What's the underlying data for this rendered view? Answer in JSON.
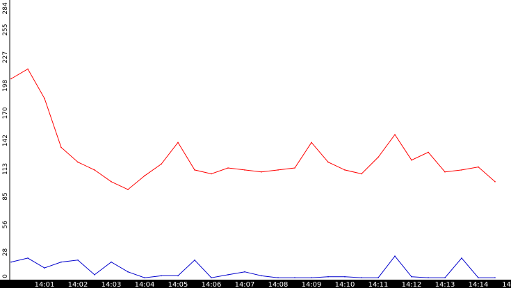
{
  "chart_data": {
    "type": "line",
    "title": "",
    "xlabel": "",
    "ylabel": "",
    "ylim": [
      0,
      284
    ],
    "y_ticks": [
      "0",
      "28",
      "56",
      "85",
      "113",
      "142",
      "170",
      "198",
      "227",
      "255",
      "284"
    ],
    "x_ticks": [
      "14:01",
      "14:02",
      "14:03",
      "14:04",
      "14:05",
      "14:06",
      "14:07",
      "14:08",
      "14:09",
      "14:10",
      "14:11",
      "14:12",
      "14:13",
      "14:14",
      "14"
    ],
    "grid": false,
    "legend": "none",
    "x_axis_band_color": "#000000",
    "x": [
      "14:00:00",
      "14:00:30",
      "14:01:00",
      "14:01:30",
      "14:02:00",
      "14:02:30",
      "14:03:00",
      "14:03:30",
      "14:04:00",
      "14:04:30",
      "14:05:00",
      "14:05:30",
      "14:06:00",
      "14:06:30",
      "14:07:00",
      "14:07:30",
      "14:08:00",
      "14:08:30",
      "14:09:00",
      "14:09:30",
      "14:10:00",
      "14:10:30",
      "14:11:00",
      "14:11:30",
      "14:12:00",
      "14:12:30",
      "14:13:00",
      "14:13:30",
      "14:14:00",
      "14:14:30"
    ],
    "series": [
      {
        "color": "#ff0000",
        "values": [
          205,
          215,
          185,
          135,
          120,
          112,
          100,
          92,
          106,
          118,
          140,
          112,
          108,
          114,
          112,
          110,
          112,
          114,
          140,
          120,
          112,
          108,
          125,
          148,
          122,
          130,
          110,
          112,
          115,
          100
        ]
      },
      {
        "color": "#0000cc",
        "values": [
          18,
          22,
          12,
          18,
          20,
          5,
          18,
          8,
          2,
          4,
          4,
          20,
          2,
          5,
          8,
          4,
          2,
          2,
          2,
          3,
          3,
          2,
          2,
          24,
          3,
          2,
          2,
          22,
          2,
          2
        ]
      }
    ]
  }
}
